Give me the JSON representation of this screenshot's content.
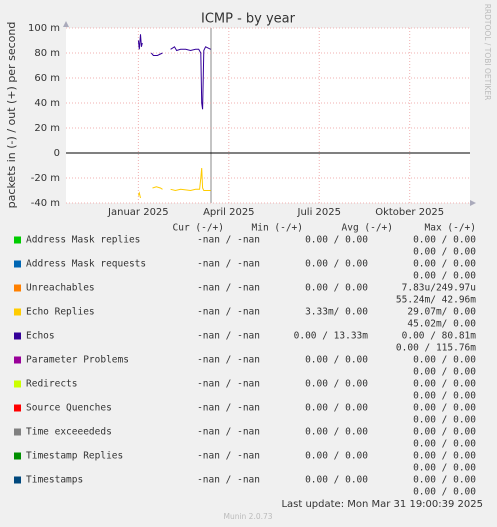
{
  "chart_data": {
    "type": "line",
    "title": "ICMP - by year",
    "y_label": "packets in (-) / out (+) per second",
    "side_label": "RRDTOOL / TOBI OETIKER",
    "ylim": [
      -40,
      100
    ],
    "yticks": [
      {
        "value": 100,
        "label": "100 m"
      },
      {
        "value": 80,
        "label": "80 m"
      },
      {
        "value": 60,
        "label": "60 m"
      },
      {
        "value": 40,
        "label": "40 m"
      },
      {
        "value": 20,
        "label": "20 m"
      },
      0,
      {
        "value": -20,
        "label": "-20 m"
      },
      {
        "value": -40,
        "label": "-40 m"
      }
    ],
    "xlim": [
      -1.4,
      12
    ],
    "xticks": [
      {
        "value": 1,
        "label": "Januar 2025"
      },
      {
        "value": 4,
        "label": "April 2025"
      },
      {
        "value": 7,
        "label": "Juli 2025"
      },
      {
        "value": 10,
        "label": "Oktober 2025"
      }
    ],
    "grid": true,
    "columns": [
      "Cur (-/+)",
      "Min (-/+)",
      "Avg (-/+)",
      "Max (-/+)"
    ],
    "series": [
      {
        "name": "Address Mask replies",
        "color": "#00cc00",
        "x": [],
        "values": [],
        "cur": "-nan / -nan",
        "min": "0.00 / 0.00",
        "avg": "0.00 / 0.00",
        "max": "0.00 / 0.00"
      },
      {
        "name": "Address Mask requests",
        "color": "#0066b3",
        "x": [],
        "values": [],
        "cur": "-nan / -nan",
        "min": "0.00 / 0.00",
        "avg": "0.00 / 0.00",
        "max": "0.00 / 0.00"
      },
      {
        "name": "Unreachables",
        "color": "#ff8000",
        "x": [],
        "values": [],
        "cur": "-nan / -nan",
        "min": "0.00 / 0.00",
        "avg": "7.83u/249.97u",
        "max": "55.24m/ 42.96m"
      },
      {
        "name": "Echo Replies",
        "color": "#ffcc00",
        "x": [
          1.0,
          1.03,
          1.07,
          null,
          1.47,
          1.6,
          1.73,
          1.8,
          null,
          2.07,
          2.23,
          2.4,
          2.73,
          2.9,
          3.03,
          3.07,
          3.1,
          3.13,
          3.17,
          3.4
        ],
        "values": [
          -34,
          -32,
          -36,
          null,
          -28,
          -27,
          -28,
          -29,
          null,
          -29,
          -30,
          -29,
          -30,
          -29,
          -29,
          -20,
          -12,
          -28,
          -30,
          -30
        ],
        "cur": "-nan / -nan",
        "min": "3.33m/ 0.00",
        "avg": "29.07m/ 0.00",
        "max": "45.02m/ 0.00"
      },
      {
        "name": "Echos",
        "color": "#330099",
        "x": [
          1.0,
          1.03,
          1.07,
          1.1,
          1.13,
          null,
          1.43,
          1.5,
          1.63,
          1.8,
          null,
          2.07,
          2.2,
          2.27,
          2.4,
          2.57,
          2.73,
          2.9,
          3.0,
          3.07,
          3.1,
          3.13,
          3.17,
          3.23,
          3.4
        ],
        "values": [
          90,
          83,
          95,
          85,
          88,
          null,
          80,
          78,
          78,
          80,
          null,
          83,
          85,
          82,
          83,
          83,
          82,
          83,
          83,
          80,
          40,
          35,
          82,
          85,
          83
        ],
        "cur": "-nan / -nan",
        "min": "0.00 / 13.33m",
        "avg": "0.00 / 80.81m",
        "max": "0.00 / 115.76m"
      },
      {
        "name": "Parameter Problems",
        "color": "#990099",
        "x": [],
        "values": [],
        "cur": "-nan / -nan",
        "min": "0.00 / 0.00",
        "avg": "0.00 / 0.00",
        "max": "0.00 / 0.00"
      },
      {
        "name": "Redirects",
        "color": "#ccff00",
        "x": [],
        "values": [],
        "cur": "-nan / -nan",
        "min": "0.00 / 0.00",
        "avg": "0.00 / 0.00",
        "max": "0.00 / 0.00"
      },
      {
        "name": "Source Quenches",
        "color": "#ff0000",
        "x": [],
        "values": [],
        "cur": "-nan / -nan",
        "min": "0.00 / 0.00",
        "avg": "0.00 / 0.00",
        "max": "0.00 / 0.00"
      },
      {
        "name": "Time exceeededs",
        "color": "#808080",
        "x": [],
        "values": [],
        "cur": "-nan / -nan",
        "min": "0.00 / 0.00",
        "avg": "0.00 / 0.00",
        "max": "0.00 / 0.00"
      },
      {
        "name": "Timestamp Replies",
        "color": "#008f00",
        "x": [],
        "values": [],
        "cur": "-nan / -nan",
        "min": "0.00 / 0.00",
        "avg": "0.00 / 0.00",
        "max": "0.00 / 0.00"
      },
      {
        "name": "Timestamps",
        "color": "#00487d",
        "x": [],
        "values": [],
        "cur": "-nan / -nan",
        "min": "0.00 / 0.00",
        "avg": "0.00 / 0.00",
        "max": "0.00 / 0.00"
      }
    ],
    "last_update": "Last update: Mon Mar 31 19:00:39 2025",
    "footer": "Munin 2.0.73"
  }
}
